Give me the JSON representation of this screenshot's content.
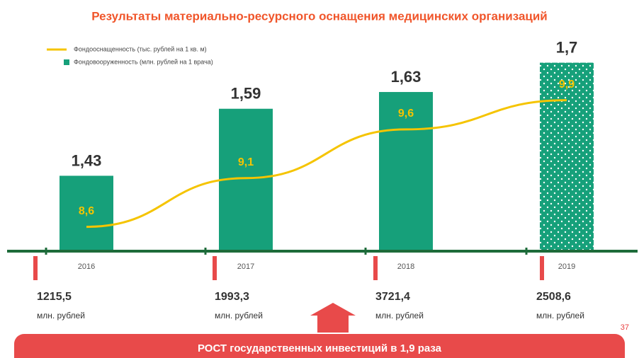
{
  "chart_data": {
    "type": "bar",
    "title": "Результаты  материально-ресурсного оснащения медицинских организаций",
    "categories": [
      "2016",
      "2017",
      "2018",
      "2019"
    ],
    "series": [
      {
        "name": "Фондооснащенность (тыс. рублей на 1 кв. м)",
        "type": "line",
        "axis": "y2",
        "color": "#f5c400",
        "values": [
          8.6,
          9.1,
          9.6,
          9.9
        ],
        "value_labels": [
          "8,6",
          "9,1",
          "9,6",
          "9,9"
        ]
      },
      {
        "name": "Фондовооруженность (млн. рублей на 1 врача)",
        "type": "bar",
        "color": "#16a07a",
        "values": [
          1.43,
          1.59,
          1.63,
          1.7
        ],
        "value_labels": [
          "1,43",
          "1,59",
          "1,63",
          "1,7"
        ]
      }
    ],
    "ylim": [
      1.25,
      1.75
    ],
    "y2lim": [
      8.35,
      10.5
    ],
    "investments": [
      "1215,5",
      "1993,3",
      "3721,4",
      "2508,6"
    ],
    "investments_unit": "млн. рублей",
    "banner": "РОСТ государственных инвестиций в 1,9 раза",
    "page_number": "37"
  }
}
